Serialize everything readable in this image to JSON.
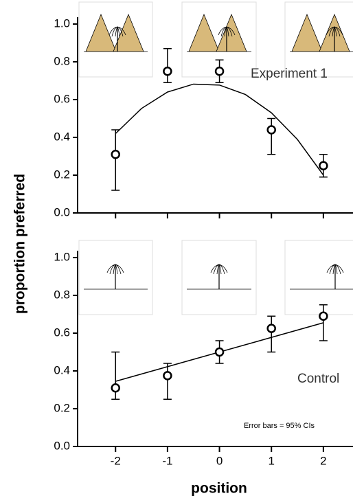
{
  "chart_data": [
    {
      "type": "errorbar",
      "annotation": "Experiment 1",
      "y_label": "proportion preferred",
      "x": [
        -2,
        -1,
        0,
        1,
        2
      ],
      "values": [
        0.31,
        0.75,
        0.75,
        0.44,
        0.25
      ],
      "ci_low": [
        0.12,
        0.69,
        0.69,
        0.31,
        0.19
      ],
      "ci_high": [
        0.44,
        0.87,
        0.81,
        0.5,
        0.31
      ],
      "fit_x": [
        -2,
        -1.5,
        -1,
        -0.5,
        0,
        0.5,
        1,
        1.5,
        2
      ],
      "fit_y": [
        0.42,
        0.553,
        0.64,
        0.682,
        0.677,
        0.627,
        0.53,
        0.389,
        0.2
      ],
      "xlim": [
        -2.73,
        2.57
      ],
      "ylim": [
        0,
        1.0
      ],
      "yticks": [
        {
          "value": 0,
          "label": "0.0"
        },
        0.2,
        0.4,
        0.6,
        0.8,
        {
          "value": 1,
          "label": "1.0"
        }
      ]
    },
    {
      "type": "errorbar",
      "annotation": "Control",
      "note": "Error bars = 95% CIs",
      "x_label": "position",
      "x": [
        -2,
        -1,
        0,
        1,
        2
      ],
      "values": [
        0.31,
        0.375,
        0.5,
        0.625,
        0.69
      ],
      "ci_low": [
        0.25,
        0.25,
        0.44,
        0.5,
        0.56
      ],
      "ci_high": [
        0.5,
        0.44,
        0.56,
        0.69,
        0.75
      ],
      "fit_x": [
        -2,
        2
      ],
      "fit_y": [
        0.345,
        0.655
      ],
      "xlim": [
        -2.73,
        2.57
      ],
      "ylim": [
        0,
        1.0
      ],
      "xticks": [
        -2,
        -1,
        0,
        1,
        2
      ],
      "yticks": [
        {
          "value": 0,
          "label": "0.0"
        },
        0.2,
        0.4,
        0.6,
        0.8,
        {
          "value": 1,
          "label": "1.0"
        }
      ]
    }
  ]
}
